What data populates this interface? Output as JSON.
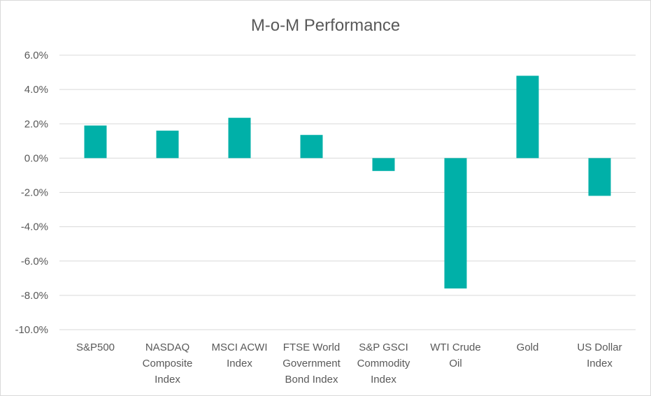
{
  "chart_data": {
    "type": "bar",
    "title": "M-o-M Performance",
    "xlabel": "",
    "ylabel": "",
    "categories": [
      [
        "S&P500"
      ],
      [
        "NASDAQ",
        "Composite",
        "Index"
      ],
      [
        "MSCI ACWI",
        "Index"
      ],
      [
        "FTSE World",
        "Government",
        "Bond Index"
      ],
      [
        "S&P GSCI",
        "Commodity",
        "Index"
      ],
      [
        "WTI Crude",
        "Oil"
      ],
      [
        "Gold"
      ],
      [
        "US Dollar",
        "Index"
      ]
    ],
    "series": [
      {
        "values": [
          1.9,
          1.6,
          2.35,
          1.35,
          -0.75,
          -7.6,
          4.8,
          -2.2
        ]
      }
    ],
    "ylim": [
      -10,
      6
    ],
    "ytick_step": 2,
    "ytick_labels": [
      "6.0%",
      "4.0%",
      "2.0%",
      "0.0%",
      "-2.0%",
      "-4.0%",
      "-6.0%",
      "-8.0%",
      "-10.0%"
    ],
    "grid": true,
    "legend": "none",
    "bar_color": "#00b0a8",
    "grid_color": "#d9d9d9"
  }
}
